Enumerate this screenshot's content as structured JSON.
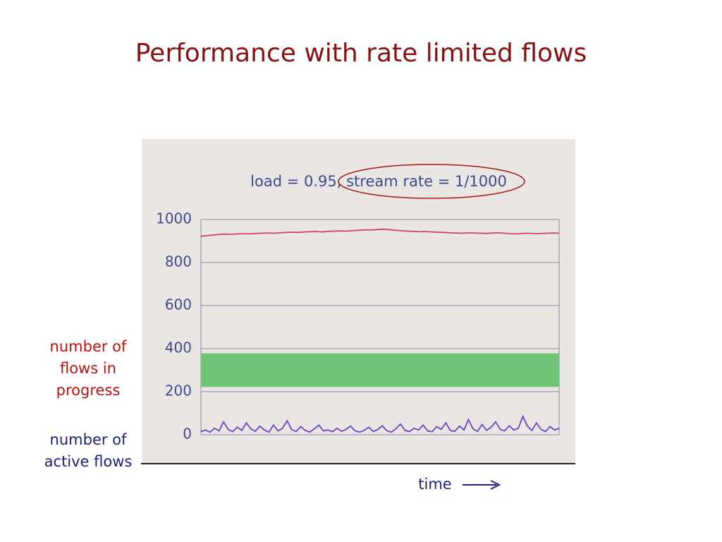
{
  "slide_title": "Performance with rate limited flows",
  "chart_data": {
    "type": "line",
    "title": "load = 0.95, stream rate = 1/1000",
    "x_label": "time",
    "ylim": [
      0,
      1000
    ],
    "yticks": [
      0,
      200,
      400,
      600,
      800,
      1000
    ],
    "grid": true,
    "band": {
      "color": "#6fc676",
      "values": [
        222,
        378
      ]
    },
    "series": [
      {
        "name": "number of flows in progress",
        "color": "#d0407a",
        "values": [
          922,
          925,
          928,
          930,
          932,
          931,
          933,
          934,
          933,
          935,
          936,
          937,
          936,
          938,
          940,
          941,
          940,
          942,
          943,
          944,
          942,
          945,
          946,
          947,
          946,
          948,
          950,
          952,
          951,
          953,
          955,
          953,
          950,
          948,
          946,
          945,
          943,
          944,
          942,
          941,
          940,
          938,
          937,
          936,
          938,
          937,
          936,
          935,
          937,
          938,
          936,
          934,
          933,
          935,
          936,
          934,
          935,
          936,
          937,
          936
        ]
      },
      {
        "name": "number of active flows",
        "color": "#7040c8",
        "values": [
          15,
          22,
          12,
          30,
          18,
          60,
          25,
          14,
          35,
          20,
          55,
          28,
          16,
          40,
          22,
          12,
          45,
          18,
          30,
          65,
          24,
          15,
          38,
          20,
          12,
          28,
          45,
          18,
          22,
          14,
          30,
          16,
          25,
          40,
          18,
          12,
          20,
          35,
          15,
          24,
          42,
          18,
          12,
          28,
          50,
          20,
          15,
          30,
          22,
          45,
          18,
          14,
          38,
          25,
          55,
          20,
          16,
          40,
          22,
          70,
          28,
          15,
          48,
          20,
          35,
          60,
          25,
          18,
          42,
          22,
          30,
          85,
          40,
          20,
          55,
          25,
          15,
          38,
          22,
          30
        ]
      }
    ]
  }
}
